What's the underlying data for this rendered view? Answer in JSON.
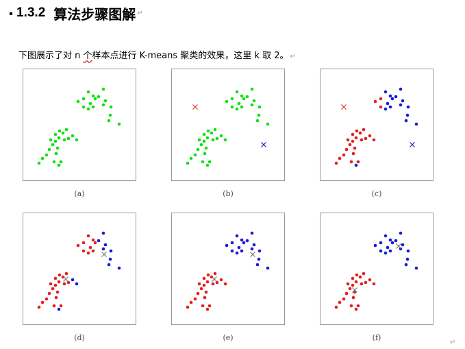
{
  "heading": {
    "number": "1.3.2",
    "title": "算法步骤图解",
    "mark": "↵"
  },
  "paragraph": {
    "pre": "下图展示了对 n ",
    "squiggle": "个",
    "post": "样本点进行 K-means 聚类的效果，这里 k 取 2。",
    "mark": "↵"
  },
  "end_mark": "↵",
  "colors": {
    "green": "#11e011",
    "red": "#e22020",
    "blue": "#1a1ad6",
    "marker_red": "#e03030",
    "marker_blue": "#2020c0",
    "marker_gray": "#777777"
  },
  "panels": [
    {
      "caption": "(a)",
      "centroids": []
    },
    {
      "caption": "(b)",
      "centroids": [
        {
          "color": "red"
        },
        {
          "color": "blue"
        }
      ]
    },
    {
      "caption": "(c)",
      "centroids": [
        {
          "color": "red"
        },
        {
          "color": "blue"
        }
      ]
    },
    {
      "caption": "(d)",
      "centroids": [
        {
          "color": "gray"
        },
        {
          "color": "gray"
        }
      ]
    },
    {
      "caption": "(e)",
      "centroids": [
        {
          "color": "gray"
        },
        {
          "color": "gray"
        }
      ]
    },
    {
      "caption": "(f)",
      "centroids": [
        {
          "color": "gray"
        },
        {
          "color": "gray"
        }
      ]
    }
  ]
}
